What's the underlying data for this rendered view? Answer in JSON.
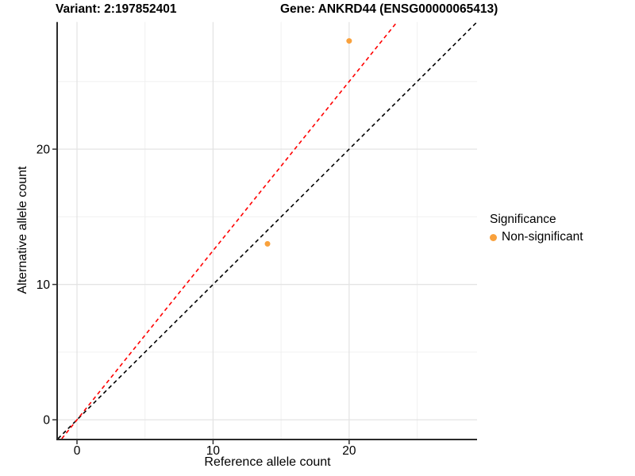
{
  "figure": {
    "title_left": "Variant: 2:197852401",
    "title_right": "Gene: ANKRD44 (ENSG00000065413)"
  },
  "chart_data": {
    "type": "scatter",
    "title": "Variant: 2:197852401 — Gene: ANKRD44 (ENSG00000065413)",
    "xlabel": "Reference allele count",
    "ylabel": "Alternative allele count",
    "xlim": [
      -1.4,
      29.4
    ],
    "ylim": [
      -1.4,
      29.4
    ],
    "x_ticks": [
      0,
      10,
      20
    ],
    "y_ticks": [
      0,
      10,
      20
    ],
    "x_minor_ticks": [
      5,
      15,
      25
    ],
    "y_minor_ticks": [
      5,
      15,
      25
    ],
    "grid": true,
    "points": [
      {
        "x": 20,
        "y": 28,
        "series": "Non-significant"
      },
      {
        "x": 14,
        "y": 13,
        "series": "Non-significant"
      }
    ],
    "lines": [
      {
        "name": "identity-line",
        "slope": 1.0,
        "intercept": 0,
        "color": "#000000",
        "style": "dashed"
      },
      {
        "name": "expected-ratio-line",
        "slope": 1.25,
        "intercept": 0,
        "color": "#FF0000",
        "style": "dashed"
      }
    ],
    "legend": {
      "title": "Significance",
      "position": "right",
      "items": [
        {
          "label": "Non-significant",
          "color": "#F9A13C"
        }
      ]
    },
    "colors": {
      "point": "#F9A13C",
      "grid_major": "#E4E4E4",
      "grid_minor": "#F0F0F0",
      "axis_line": "#2B2B2B",
      "tick": "#333333"
    }
  }
}
